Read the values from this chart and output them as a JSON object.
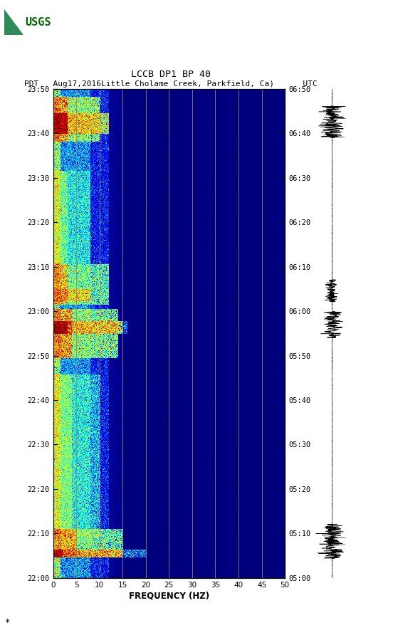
{
  "title_line1": "LCCB DP1 BP 40",
  "title_line2": "PDT   Aug17,2016Little Cholame Creek, Parkfield, Ca)      UTC",
  "xlabel": "FREQUENCY (HZ)",
  "left_time_labels": [
    "22:00",
    "22:10",
    "22:20",
    "22:30",
    "22:40",
    "22:50",
    "23:00",
    "23:10",
    "23:20",
    "23:30",
    "23:40",
    "23:50"
  ],
  "right_time_labels": [
    "05:00",
    "05:10",
    "05:20",
    "05:30",
    "05:40",
    "05:50",
    "06:00",
    "06:10",
    "06:20",
    "06:30",
    "06:40",
    "06:50"
  ],
  "x_ticks": [
    0,
    5,
    10,
    15,
    20,
    25,
    30,
    35,
    40,
    45,
    50
  ],
  "grid_lines_x": [
    5,
    10,
    15,
    20,
    25,
    30,
    35,
    40,
    45
  ],
  "background_color": "#ffffff",
  "fig_width": 5.52,
  "fig_height": 8.92,
  "usgs_color": "#006400"
}
